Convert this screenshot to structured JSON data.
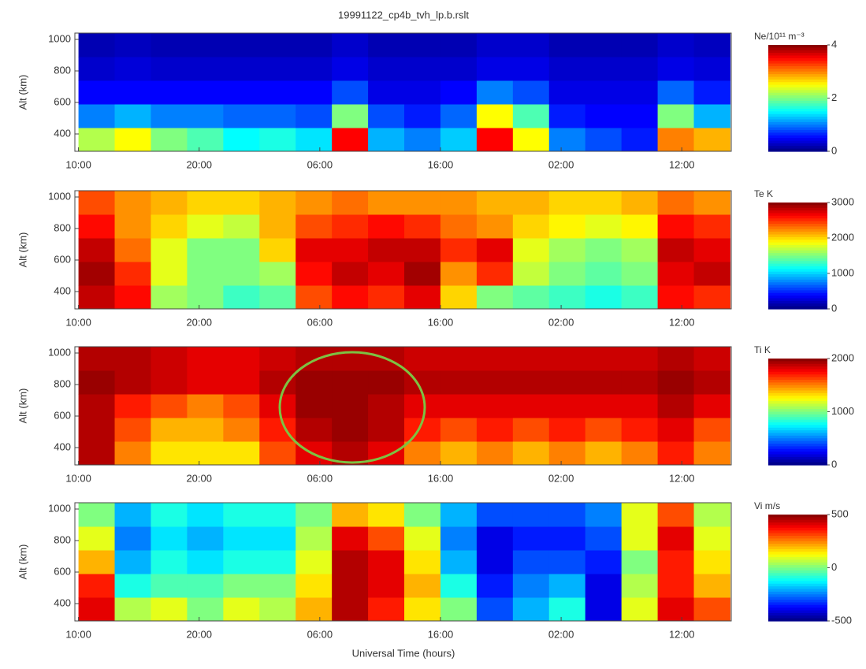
{
  "chart_data": [
    {
      "type": "heatmap",
      "title": "19991122_cp4b_tvh_lp.b.rslt",
      "ylabel": "Alt (km)",
      "colorbar_label": "Ne/10¹¹ m⁻³",
      "xlim": [
        -0.3,
        54.1
      ],
      "xticks": [
        {
          "value": 0,
          "label": "10:00"
        },
        {
          "value": 10,
          "label": "20:00"
        },
        {
          "value": 20,
          "label": "06:00"
        },
        {
          "value": 30,
          "label": "16:00"
        },
        {
          "value": 40,
          "label": "02:00"
        },
        {
          "value": 50,
          "label": "12:00"
        }
      ],
      "ylim": [
        290,
        1040
      ],
      "yticks": [
        400,
        600,
        800,
        1000
      ],
      "zlim": [
        0,
        4
      ],
      "zticks": [
        0,
        2,
        4
      ],
      "x": [
        1.5,
        4.5,
        7.5,
        10.5,
        13.5,
        16.5,
        19.5,
        22.5,
        25.5,
        28.5,
        31.5,
        34.5,
        37.5,
        40.5,
        43.5,
        46.5,
        49.5,
        52.5
      ],
      "y": [
        365,
        515,
        665,
        815,
        965
      ],
      "z": [
        [
          2.2,
          2.5,
          2,
          1.8,
          1.5,
          1.6,
          1.4,
          3.5,
          1.2,
          1.0,
          1.3,
          3.5,
          2.5,
          1.0,
          0.8,
          0.6,
          3.0,
          2.8
        ],
        [
          1.0,
          1.2,
          1.0,
          1.0,
          0.9,
          0.9,
          0.8,
          2.0,
          0.8,
          0.6,
          0.9,
          2.5,
          1.8,
          0.6,
          0.5,
          0.5,
          2.0,
          1.2
        ],
        [
          0.5,
          0.5,
          0.5,
          0.5,
          0.5,
          0.5,
          0.5,
          0.8,
          0.4,
          0.4,
          0.5,
          1.0,
          0.8,
          0.4,
          0.4,
          0.4,
          0.9,
          0.6
        ],
        [
          0.3,
          0.35,
          0.3,
          0.3,
          0.3,
          0.3,
          0.3,
          0.4,
          0.3,
          0.3,
          0.3,
          0.4,
          0.4,
          0.3,
          0.3,
          0.3,
          0.4,
          0.35
        ],
        [
          0.2,
          0.25,
          0.2,
          0.2,
          0.2,
          0.2,
          0.2,
          0.3,
          0.2,
          0.2,
          0.2,
          0.3,
          0.3,
          0.2,
          0.2,
          0.2,
          0.3,
          0.25
        ]
      ]
    },
    {
      "type": "heatmap",
      "ylabel": "Alt (km)",
      "colorbar_label": "Te K",
      "xlim": [
        -0.3,
        54.1
      ],
      "xticks": [
        {
          "value": 0,
          "label": "10:00"
        },
        {
          "value": 10,
          "label": "20:00"
        },
        {
          "value": 20,
          "label": "06:00"
        },
        {
          "value": 30,
          "label": "16:00"
        },
        {
          "value": 40,
          "label": "02:00"
        },
        {
          "value": 50,
          "label": "12:00"
        }
      ],
      "ylim": [
        290,
        1040
      ],
      "yticks": [
        400,
        600,
        800,
        1000
      ],
      "zlim": [
        0,
        3000
      ],
      "zticks": [
        0,
        1000,
        2000,
        3000
      ],
      "x": [
        1.5,
        4.5,
        7.5,
        10.5,
        13.5,
        16.5,
        19.5,
        22.5,
        25.5,
        28.5,
        31.5,
        34.5,
        37.5,
        40.5,
        43.5,
        46.5,
        49.5,
        52.5
      ],
      "y": [
        365,
        515,
        665,
        815,
        965
      ],
      "z": [
        [
          2800,
          2600,
          1600,
          1500,
          1300,
          1400,
          2400,
          2600,
          2500,
          2700,
          2000,
          1500,
          1400,
          1300,
          1200,
          1300,
          2600,
          2500
        ],
        [
          2900,
          2500,
          1800,
          1500,
          1500,
          1600,
          2600,
          2800,
          2700,
          2900,
          2200,
          2500,
          1700,
          1500,
          1400,
          1500,
          2700,
          2800
        ],
        [
          2800,
          2300,
          1800,
          1500,
          1500,
          2000,
          2700,
          2700,
          2800,
          2800,
          2500,
          2700,
          1800,
          1600,
          1500,
          1600,
          2800,
          2700
        ],
        [
          2600,
          2200,
          2000,
          1800,
          1700,
          2100,
          2400,
          2500,
          2600,
          2500,
          2300,
          2200,
          2000,
          1900,
          1800,
          1900,
          2600,
          2500
        ],
        [
          2400,
          2200,
          2100,
          2000,
          2000,
          2100,
          2200,
          2300,
          2200,
          2200,
          2200,
          2100,
          2100,
          2000,
          2000,
          2100,
          2300,
          2200
        ]
      ]
    },
    {
      "type": "heatmap",
      "ylabel": "Alt (km)",
      "colorbar_label": "Ti K",
      "xlim": [
        -0.3,
        54.1
      ],
      "xticks": [
        {
          "value": 0,
          "label": "10:00"
        },
        {
          "value": 10,
          "label": "20:00"
        },
        {
          "value": 20,
          "label": "06:00"
        },
        {
          "value": 30,
          "label": "16:00"
        },
        {
          "value": 40,
          "label": "02:00"
        },
        {
          "value": 50,
          "label": "12:00"
        }
      ],
      "ylim": [
        290,
        1040
      ],
      "yticks": [
        400,
        600,
        800,
        1000
      ],
      "zlim": [
        0,
        2000
      ],
      "zticks": [
        0,
        1000,
        2000
      ],
      "x": [
        1.5,
        4.5,
        7.5,
        10.5,
        13.5,
        16.5,
        19.5,
        22.5,
        25.5,
        28.5,
        31.5,
        34.5,
        37.5,
        40.5,
        43.5,
        46.5,
        49.5,
        52.5
      ],
      "y": [
        365,
        515,
        665,
        815,
        965
      ],
      "z": [
        [
          1900,
          1500,
          1300,
          1300,
          1300,
          1600,
          1800,
          1900,
          1800,
          1500,
          1400,
          1500,
          1400,
          1500,
          1400,
          1500,
          1700,
          1500
        ],
        [
          1900,
          1600,
          1400,
          1400,
          1500,
          1700,
          1900,
          1950,
          1900,
          1700,
          1600,
          1700,
          1600,
          1700,
          1600,
          1700,
          1800,
          1600
        ],
        [
          1900,
          1700,
          1600,
          1500,
          1600,
          1800,
          1950,
          1950,
          1900,
          1800,
          1800,
          1800,
          1800,
          1800,
          1800,
          1800,
          1900,
          1800
        ],
        [
          1950,
          1900,
          1850,
          1800,
          1800,
          1900,
          1950,
          1950,
          1950,
          1900,
          1900,
          1900,
          1900,
          1900,
          1900,
          1900,
          1950,
          1900
        ],
        [
          1900,
          1900,
          1850,
          1800,
          1800,
          1850,
          1900,
          1900,
          1900,
          1850,
          1850,
          1850,
          1850,
          1850,
          1850,
          1850,
          1900,
          1850
        ]
      ]
    },
    {
      "type": "heatmap",
      "ylabel": "Alt (km)",
      "colorbar_label": "Vi m/s",
      "xlabel": "Universal Time (hours)",
      "xlim": [
        -0.3,
        54.1
      ],
      "xticks": [
        {
          "value": 0,
          "label": "10:00"
        },
        {
          "value": 10,
          "label": "20:00"
        },
        {
          "value": 20,
          "label": "06:00"
        },
        {
          "value": 30,
          "label": "16:00"
        },
        {
          "value": 40,
          "label": "02:00"
        },
        {
          "value": 50,
          "label": "12:00"
        }
      ],
      "ylim": [
        290,
        1040
      ],
      "yticks": [
        400,
        600,
        800,
        1000
      ],
      "zlim": [
        -500,
        500
      ],
      "zticks": [
        -500,
        0,
        500
      ],
      "x": [
        1.5,
        4.5,
        7.5,
        10.5,
        13.5,
        16.5,
        19.5,
        22.5,
        25.5,
        28.5,
        31.5,
        34.5,
        37.5,
        40.5,
        43.5,
        46.5,
        49.5,
        52.5
      ],
      "y": [
        365,
        515,
        665,
        815,
        965
      ],
      "z": [
        [
          400,
          50,
          100,
          0,
          100,
          50,
          200,
          450,
          350,
          150,
          0,
          -300,
          -200,
          -100,
          -400,
          100,
          400,
          300
        ],
        [
          350,
          -100,
          -50,
          -50,
          0,
          0,
          150,
          450,
          400,
          200,
          -100,
          -350,
          -250,
          -200,
          -400,
          50,
          350,
          200
        ],
        [
          200,
          -200,
          -100,
          -150,
          -100,
          -100,
          100,
          450,
          400,
          150,
          -200,
          -400,
          -300,
          -300,
          -350,
          0,
          350,
          150
        ],
        [
          100,
          -250,
          -150,
          -200,
          -150,
          -150,
          50,
          400,
          300,
          100,
          -250,
          -400,
          -350,
          -350,
          -300,
          100,
          400,
          100
        ],
        [
          0,
          -200,
          -100,
          -150,
          -100,
          -100,
          0,
          200,
          150,
          0,
          -200,
          -300,
          -300,
          -300,
          -250,
          100,
          300,
          50
        ]
      ]
    }
  ]
}
